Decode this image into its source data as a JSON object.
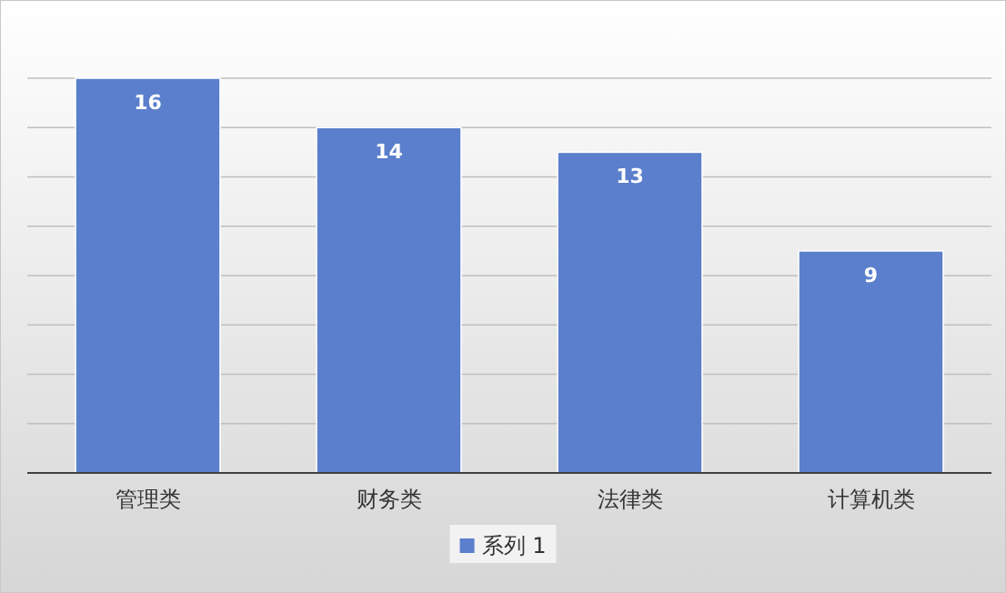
{
  "chart_data": {
    "type": "bar",
    "categories": [
      "管理类",
      "财务类",
      "法律类",
      "计算机类"
    ],
    "series": [
      {
        "name": "系列 1",
        "color": "#5b7fcc",
        "values": [
          16,
          14,
          13,
          9
        ]
      }
    ],
    "ylim": [
      0,
      16
    ],
    "yticks": [
      {
        "value": 0,
        "label": null
      },
      {
        "value": 2,
        "label": null
      },
      {
        "value": 4,
        "label": null
      },
      {
        "value": 6,
        "label": null
      },
      {
        "value": 8,
        "label": null
      },
      {
        "value": 10,
        "label": null
      },
      {
        "value": 12,
        "label": null
      },
      {
        "value": 14,
        "label": null
      },
      {
        "value": 16,
        "label": null
      }
    ],
    "tick_labels": "x",
    "grid": "y",
    "data_labels": true,
    "legend": "bottom"
  }
}
